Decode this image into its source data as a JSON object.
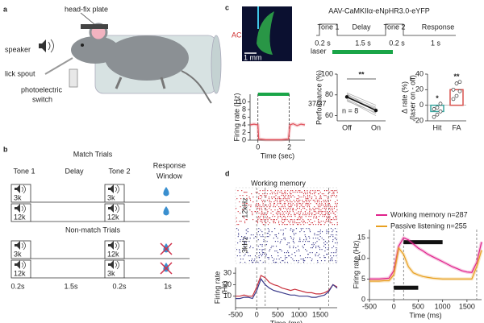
{
  "panels": {
    "a": {
      "label": "a",
      "annotations": [
        "head-fix plate",
        "speaker",
        "lick spout",
        "photoelectric",
        "switch"
      ]
    },
    "b": {
      "label": "b",
      "match_title": "Match Trials",
      "non_match_title": "Non-match Trials",
      "headers": [
        "Tone 1",
        "Delay",
        "Tone 2",
        "Response",
        "Window"
      ],
      "rows": [
        [
          "3k",
          "3k"
        ],
        [
          "12k",
          "12k"
        ],
        [
          "3k",
          "12k"
        ],
        [
          "12k",
          "3k"
        ]
      ],
      "durations": [
        "0.2s",
        "1.5s",
        "0.2s",
        "1s"
      ]
    },
    "c": {
      "label": "c",
      "image_label": "AC",
      "scale_bar": "1 mm",
      "construct": "AAV-CaMKIIα-eNpHR3.0-eYFP",
      "epochs": [
        "Tone 1",
        "Delay",
        "Tone 2",
        "Response"
      ],
      "durations": [
        "0.2 s",
        "1.5 s",
        "0.2 s",
        "1 s"
      ],
      "laser": "laser"
    },
    "d": {
      "label": "d",
      "raster_title": "Working memory",
      "raster_labels": [
        "12kHz",
        "3kHz"
      ]
    }
  },
  "chart_data": [
    {
      "type": "line",
      "ylabel": "Firing rate (Hz)",
      "xlabel": "Time (sec)",
      "annotation": "37/37",
      "x": [
        -0.5,
        -0.25,
        0,
        0.05,
        0.5,
        1,
        1.5,
        1.95,
        2.05,
        2.25,
        2.5,
        2.75,
        3
      ],
      "series": [
        {
          "color": "#e0505a",
          "values": [
            4,
            4.2,
            4,
            0.3,
            0.1,
            0.1,
            0.1,
            0.3,
            4,
            4.3,
            3.8,
            4.2,
            4
          ]
        }
      ],
      "laser_interval": [
        0,
        2
      ],
      "laser_color": "#1aa548",
      "xlim": [
        -0.5,
        3
      ],
      "xticks": [
        0,
        2
      ],
      "ylim": [
        0,
        12
      ],
      "yticks": [
        0,
        2,
        4,
        6,
        8,
        10
      ]
    },
    {
      "type": "paired",
      "ylabel": "Performance (%)",
      "categories": [
        "Off",
        "On"
      ],
      "annotations": [
        "**",
        "n = 8"
      ],
      "series": [
        {
          "color": "#111111",
          "values": [
            78,
            65
          ]
        }
      ],
      "individual_color": "#b0b0b0",
      "individual_values": [
        [
          82,
          70
        ],
        [
          80,
          68
        ],
        [
          76,
          62
        ],
        [
          79,
          66
        ],
        [
          74,
          63
        ],
        [
          81,
          64
        ],
        [
          77,
          67
        ],
        [
          75,
          60
        ]
      ],
      "ylim": [
        55,
        100
      ],
      "yticks": [
        60,
        80,
        100
      ]
    },
    {
      "type": "bar",
      "ylabel": [
        "Δ rate (%)",
        "(laser on - off)"
      ],
      "categories": [
        "Hit",
        "FA"
      ],
      "values": [
        -8,
        20
      ],
      "colors": [
        "#3aa6a0",
        "#d9534f"
      ],
      "annotations": [
        "*",
        "**"
      ],
      "points": [
        [
          -15,
          -12,
          -8,
          -5,
          -3,
          2
        ],
        [
          8,
          12,
          18,
          20,
          28,
          30
        ]
      ],
      "ylim": [
        -20,
        40
      ],
      "yticks": [
        -20,
        0,
        20,
        40
      ]
    },
    {
      "type": "line",
      "ylabel": [
        "Firing rate",
        "(Hz)"
      ],
      "xlabel": "Time (ms)",
      "x": [
        -500,
        -400,
        -300,
        -200,
        -100,
        0,
        100,
        200,
        300,
        400,
        500,
        600,
        700,
        800,
        900,
        1000,
        1100,
        1200,
        1300,
        1400,
        1500,
        1600,
        1700,
        1800,
        1900
      ],
      "series": [
        {
          "color": "#c8303c",
          "values": [
            10,
            10,
            11,
            10,
            10,
            18,
            28,
            26,
            22,
            20,
            19,
            17,
            16,
            15,
            16,
            15,
            14,
            13,
            13,
            12,
            12,
            13,
            15,
            20,
            18
          ]
        },
        {
          "color": "#3a3a8a",
          "values": [
            8,
            8,
            9,
            9,
            8,
            15,
            25,
            20,
            17,
            15,
            14,
            13,
            12,
            11,
            11,
            10,
            10,
            10,
            9,
            9,
            10,
            11,
            14,
            20,
            17
          ]
        }
      ],
      "epoch_lines": [
        0,
        200,
        1700
      ],
      "xlim": [
        -500,
        1900
      ],
      "xticks": [
        -500,
        0,
        500,
        1000,
        1500
      ],
      "ylim": [
        0,
        35
      ],
      "yticks": [
        10,
        20,
        30
      ]
    },
    {
      "type": "line",
      "ylabel": "Firing rate (Hz)",
      "xlabel": "Time (ms)",
      "x": [
        -500,
        -400,
        -300,
        -200,
        -100,
        0,
        100,
        200,
        300,
        400,
        500,
        600,
        700,
        800,
        900,
        1000,
        1100,
        1200,
        1300,
        1400,
        1500,
        1600,
        1700,
        1800
      ],
      "series": [
        {
          "name": "Working memory n=287",
          "color": "#e0238c",
          "values": [
            5,
            5,
            5,
            5.1,
            5.2,
            7,
            13,
            15,
            14.5,
            13.5,
            12.5,
            11.8,
            11,
            10.4,
            9.8,
            9.2,
            8.6,
            8,
            7.5,
            7,
            6.7,
            6.6,
            9,
            14
          ]
        },
        {
          "name": "Passive listening n=255",
          "color": "#e8a020",
          "values": [
            4.5,
            4.5,
            4.5,
            4.6,
            4.6,
            6,
            12.5,
            11,
            8,
            6.5,
            6,
            5.6,
            5.4,
            5.2,
            5.1,
            5,
            5,
            5,
            5,
            5,
            5,
            5,
            8,
            12
          ]
        }
      ],
      "epoch_lines": [
        0,
        200,
        1700
      ],
      "sig_intervals": [
        [
          200,
          1000
        ],
        [
          0,
          500
        ]
      ],
      "xlim": [
        -500,
        1800
      ],
      "xticks": [
        -500,
        0,
        500,
        1000,
        1500
      ],
      "ylim": [
        0,
        17
      ],
      "yticks": [
        0,
        5,
        10,
        15
      ]
    }
  ]
}
